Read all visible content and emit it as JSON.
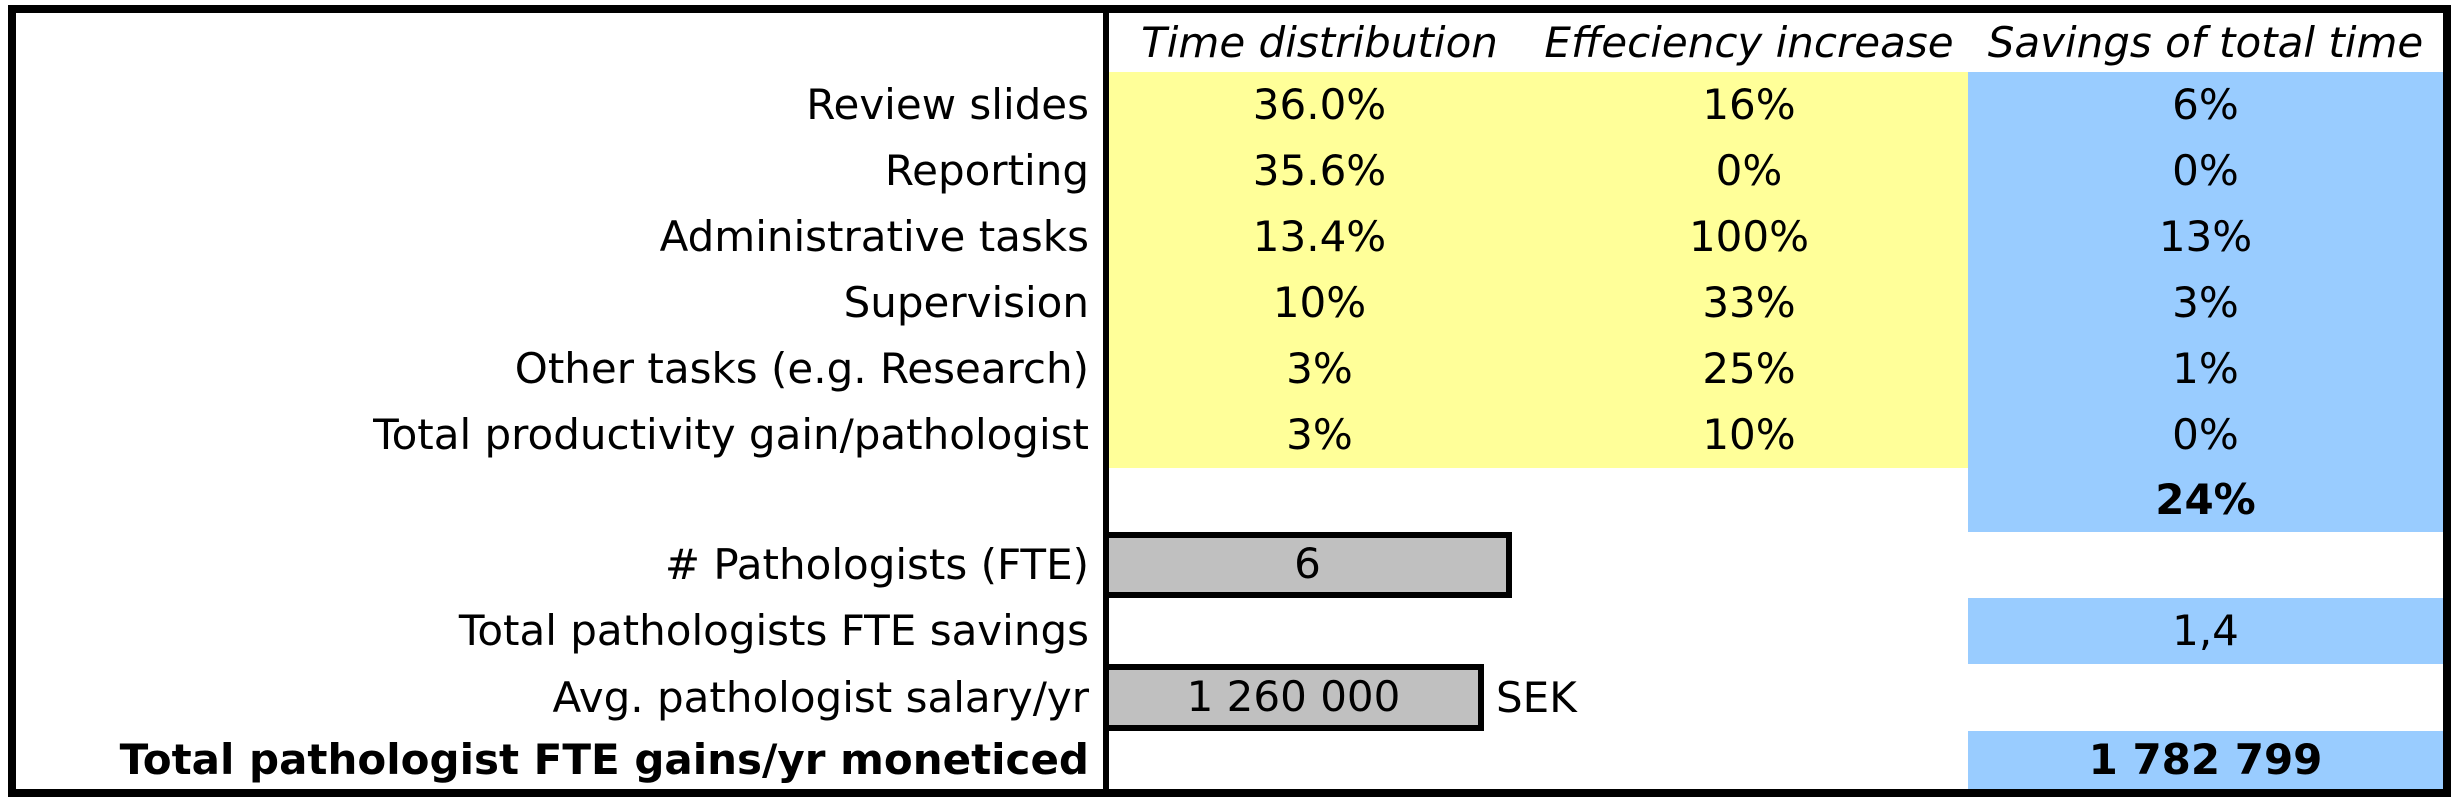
{
  "columns": {
    "time_distribution": "Time distribution",
    "efficiency_increase": "Effeciency increase",
    "savings_of_total_time": "Savings of total time"
  },
  "task_rows": [
    {
      "label": "Review slides",
      "time_distribution": "36.0%",
      "efficiency_increase": "16%",
      "savings_of_total_time": "6%"
    },
    {
      "label": "Reporting",
      "time_distribution": "35.6%",
      "efficiency_increase": "0%",
      "savings_of_total_time": "0%"
    },
    {
      "label": "Administrative tasks",
      "time_distribution": "13.4%",
      "efficiency_increase": "100%",
      "savings_of_total_time": "13%"
    },
    {
      "label": "Supervision",
      "time_distribution": "10%",
      "efficiency_increase": "33%",
      "savings_of_total_time": "3%"
    },
    {
      "label": "Other tasks (e.g. Research)",
      "time_distribution": "3%",
      "efficiency_increase": "25%",
      "savings_of_total_time": "1%"
    },
    {
      "label": "Total productivity gain/pathologist",
      "time_distribution": "3%",
      "efficiency_increase": "10%",
      "savings_of_total_time": "0%"
    }
  ],
  "total_time_savings": "24%",
  "pathologists_fte": {
    "label": "# Pathologists (FTE)",
    "value": "6"
  },
  "fte_savings": {
    "label": "Total pathologists FTE savings",
    "value": "1,4"
  },
  "avg_salary": {
    "label": "Avg. pathologist salary/yr",
    "value": "1 260 000",
    "unit": "SEK"
  },
  "monetized_gains": {
    "label": "Total pathologist FTE gains/yr moneticed",
    "value": "1 782 799"
  },
  "colors": {
    "assumption_highlight": "#FFFF99",
    "result_highlight": "#99CCFF",
    "input_cell": "#C0C0C0",
    "border": "#000000"
  }
}
